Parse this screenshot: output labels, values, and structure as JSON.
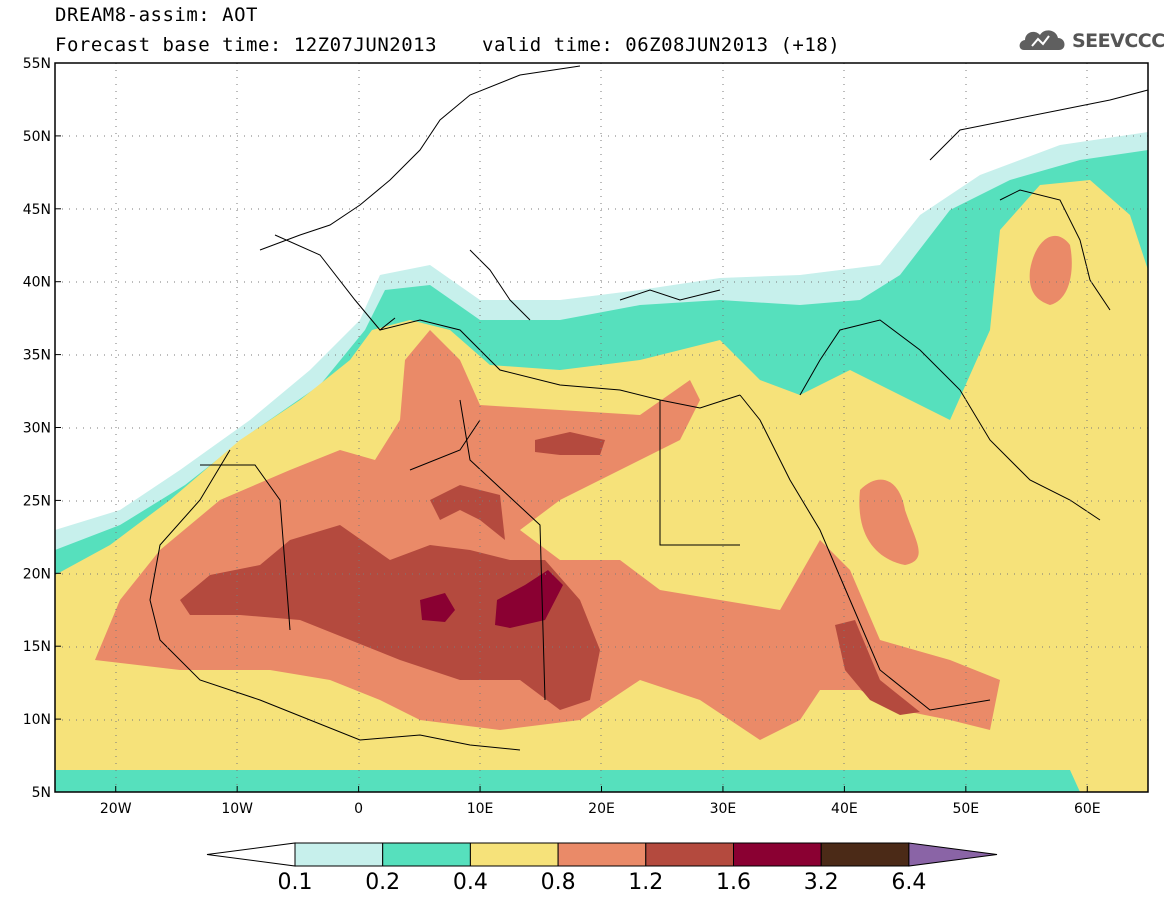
{
  "title": {
    "line1": "DREAM8-assim: AOT",
    "line2": "Forecast base time: 12Z07JUN2013",
    "valid": "valid time: 06Z08JUN2013 (+18)"
  },
  "logo": {
    "text": "SEEVCCC",
    "icon": "cloud-icon"
  },
  "axes": {
    "x_ticks": [
      "20W",
      "10W",
      "0",
      "10E",
      "20E",
      "30E",
      "40E",
      "50E",
      "60E"
    ],
    "y_ticks": [
      "55N",
      "50N",
      "45N",
      "40N",
      "35N",
      "30N",
      "25N",
      "20N",
      "15N",
      "10N",
      "5N"
    ],
    "lon_range": [
      -25,
      65
    ],
    "lat_range": [
      5,
      55
    ],
    "grid": "dotted"
  },
  "colorbar": {
    "levels": [
      "0.1",
      "0.2",
      "0.4",
      "0.8",
      "1.2",
      "1.6",
      "3.2",
      "6.4"
    ],
    "colors": [
      "#ffffff",
      "#c7f0ec",
      "#56e0bd",
      "#f6e27a",
      "#ea8a68",
      "#b44a3e",
      "#8a0032",
      "#4b2a17",
      "#8a64a6"
    ]
  }
}
